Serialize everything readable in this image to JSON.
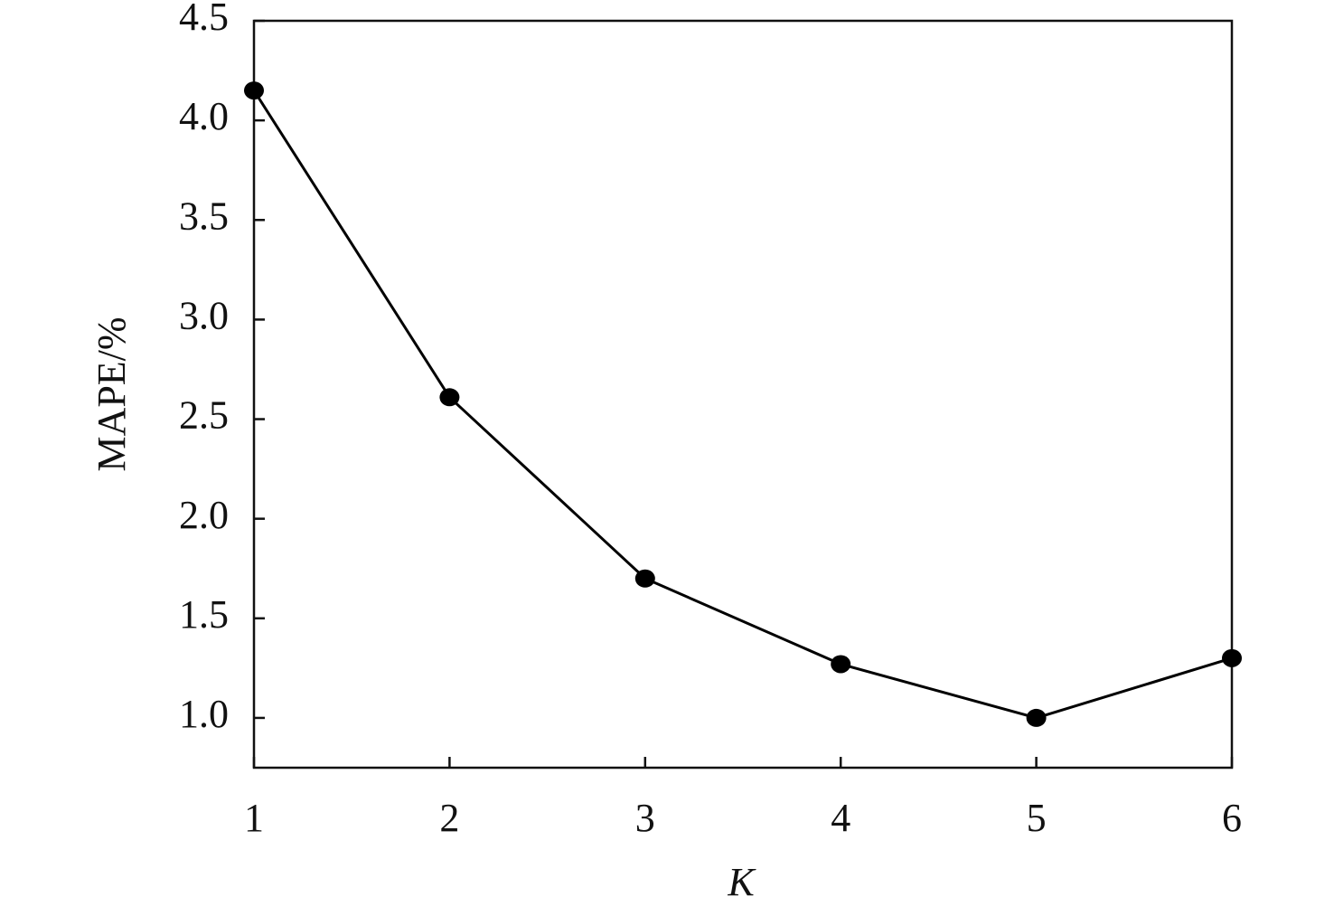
{
  "chart_data": {
    "type": "line",
    "x_label": "K",
    "y_label": "MAPE/%",
    "x": [
      1,
      2,
      3,
      4,
      5,
      6
    ],
    "series": [
      {
        "name": "MAPE",
        "color": "#000000",
        "values": [
          4.15,
          2.61,
          1.7,
          1.27,
          1.0,
          1.3
        ]
      }
    ],
    "xlim": [
      1,
      6
    ],
    "xticks": [
      1,
      2,
      3,
      4,
      5,
      6
    ],
    "ylim": [
      0.75,
      4.5
    ],
    "yticks": [
      {
        "value": 1,
        "label": "1.0"
      },
      1.5,
      {
        "value": 2,
        "label": "2.0"
      },
      2.5,
      {
        "value": 3,
        "label": "3.0"
      },
      3.5,
      {
        "value": 4,
        "label": "4.0"
      },
      4.5
    ],
    "grid": false,
    "legend": false
  }
}
